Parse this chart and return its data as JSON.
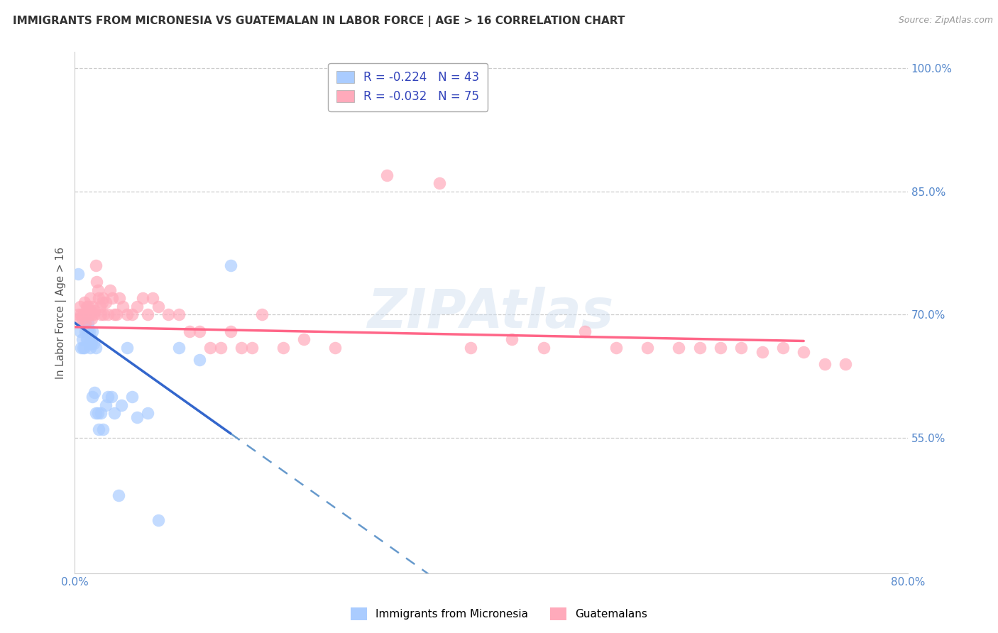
{
  "title": "IMMIGRANTS FROM MICRONESIA VS GUATEMALAN IN LABOR FORCE | AGE > 16 CORRELATION CHART",
  "source": "Source: ZipAtlas.com",
  "ylabel": "In Labor Force | Age > 16",
  "xlim": [
    0.0,
    0.8
  ],
  "ylim": [
    0.385,
    1.02
  ],
  "xticks": [
    0.0,
    0.1,
    0.2,
    0.3,
    0.4,
    0.5,
    0.6,
    0.7,
    0.8
  ],
  "xticklabels": [
    "0.0%",
    "",
    "",
    "",
    "",
    "",
    "",
    "",
    "80.0%"
  ],
  "ytick_positions": [
    0.55,
    0.7,
    0.85,
    1.0
  ],
  "ytick_labels": [
    "55.0%",
    "70.0%",
    "85.0%",
    "100.0%"
  ],
  "micronesia_color": "#aaccff",
  "guatemalan_color": "#ffaabb",
  "micronesia_R": -0.224,
  "micronesia_N": 43,
  "guatemalan_R": -0.032,
  "guatemalan_N": 75,
  "watermark": "ZIPAtlas",
  "blue_line_x0": 0.0,
  "blue_line_y0": 0.69,
  "blue_line_x1": 0.15,
  "blue_line_y1": 0.555,
  "pink_line_x0": 0.0,
  "pink_line_y0": 0.685,
  "pink_line_x1": 0.7,
  "pink_line_y1": 0.668,
  "micronesia_x": [
    0.003,
    0.005,
    0.006,
    0.007,
    0.008,
    0.009,
    0.01,
    0.01,
    0.011,
    0.012,
    0.012,
    0.013,
    0.013,
    0.014,
    0.014,
    0.015,
    0.015,
    0.016,
    0.016,
    0.017,
    0.017,
    0.018,
    0.019,
    0.02,
    0.02,
    0.022,
    0.023,
    0.025,
    0.027,
    0.03,
    0.032,
    0.035,
    0.038,
    0.042,
    0.045,
    0.05,
    0.055,
    0.06,
    0.07,
    0.08,
    0.1,
    0.12,
    0.15
  ],
  "micronesia_y": [
    0.75,
    0.68,
    0.66,
    0.67,
    0.66,
    0.66,
    0.69,
    0.68,
    0.67,
    0.68,
    0.67,
    0.69,
    0.68,
    0.68,
    0.665,
    0.66,
    0.665,
    0.67,
    0.665,
    0.68,
    0.6,
    0.665,
    0.605,
    0.66,
    0.58,
    0.58,
    0.56,
    0.58,
    0.56,
    0.59,
    0.6,
    0.6,
    0.58,
    0.48,
    0.59,
    0.66,
    0.6,
    0.575,
    0.58,
    0.45,
    0.66,
    0.645,
    0.76
  ],
  "guatemalan_x": [
    0.003,
    0.004,
    0.005,
    0.006,
    0.007,
    0.008,
    0.009,
    0.01,
    0.01,
    0.011,
    0.012,
    0.013,
    0.013,
    0.014,
    0.015,
    0.015,
    0.016,
    0.016,
    0.017,
    0.018,
    0.019,
    0.02,
    0.021,
    0.022,
    0.023,
    0.024,
    0.025,
    0.026,
    0.027,
    0.028,
    0.03,
    0.032,
    0.034,
    0.036,
    0.038,
    0.04,
    0.043,
    0.046,
    0.05,
    0.055,
    0.06,
    0.065,
    0.07,
    0.075,
    0.08,
    0.09,
    0.1,
    0.11,
    0.12,
    0.13,
    0.14,
    0.15,
    0.16,
    0.17,
    0.18,
    0.2,
    0.22,
    0.25,
    0.3,
    0.35,
    0.38,
    0.42,
    0.45,
    0.49,
    0.52,
    0.55,
    0.58,
    0.6,
    0.62,
    0.64,
    0.66,
    0.68,
    0.7,
    0.72,
    0.74
  ],
  "guatemalan_y": [
    0.7,
    0.695,
    0.71,
    0.7,
    0.695,
    0.7,
    0.715,
    0.7,
    0.69,
    0.71,
    0.7,
    0.7,
    0.71,
    0.7,
    0.72,
    0.705,
    0.7,
    0.695,
    0.71,
    0.7,
    0.705,
    0.76,
    0.74,
    0.73,
    0.72,
    0.71,
    0.7,
    0.715,
    0.72,
    0.7,
    0.715,
    0.7,
    0.73,
    0.72,
    0.7,
    0.7,
    0.72,
    0.71,
    0.7,
    0.7,
    0.71,
    0.72,
    0.7,
    0.72,
    0.71,
    0.7,
    0.7,
    0.68,
    0.68,
    0.66,
    0.66,
    0.68,
    0.66,
    0.66,
    0.7,
    0.66,
    0.67,
    0.66,
    0.87,
    0.86,
    0.66,
    0.67,
    0.66,
    0.68,
    0.66,
    0.66,
    0.66,
    0.66,
    0.66,
    0.66,
    0.655,
    0.66,
    0.655,
    0.64,
    0.64
  ]
}
